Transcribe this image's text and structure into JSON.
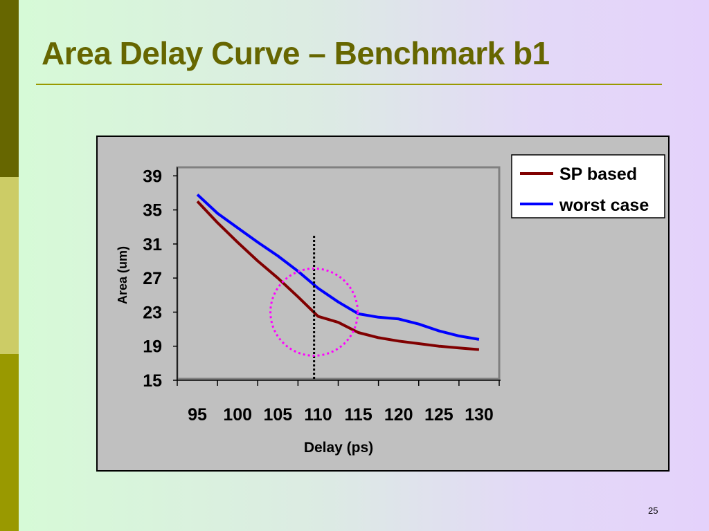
{
  "slide": {
    "title": "Area Delay Curve – Benchmark b1",
    "page_number": "25"
  },
  "colors": {
    "title": "#666600",
    "sidebar_dark": "#666600",
    "sidebar_light": "#cccc66",
    "sidebar_mid": "#999900",
    "chart_background": "#c0c0c0",
    "annotation_circle": "#ff00ff"
  },
  "chart_data": {
    "type": "line",
    "title": "",
    "xlabel": "Delay (ps)",
    "ylabel": "Area (um)",
    "x": [
      95,
      97.5,
      100,
      102.5,
      105,
      107.5,
      110,
      112.5,
      115,
      117.5,
      120,
      122.5,
      125,
      127.5,
      130
    ],
    "categories": [
      "95",
      "100",
      "105",
      "110",
      "115",
      "120",
      "125",
      "130"
    ],
    "yticks": [
      "39",
      "35",
      "31",
      "27",
      "23",
      "19",
      "15"
    ],
    "ylim": [
      15,
      40
    ],
    "grid": false,
    "legend": "top-right",
    "series": [
      {
        "name": "SP based",
        "color": "#800000",
        "values": [
          36.0,
          33.5,
          31.2,
          29.0,
          27.0,
          24.8,
          22.5,
          21.8,
          20.6,
          20.0,
          19.6,
          19.3,
          19.0,
          18.8,
          18.6
        ]
      },
      {
        "name": "worst case",
        "color": "#0000ff",
        "values": [
          36.8,
          34.6,
          32.9,
          31.2,
          29.6,
          27.8,
          25.8,
          24.2,
          22.8,
          22.4,
          22.2,
          21.6,
          20.8,
          20.2,
          19.8
        ]
      }
    ],
    "annotations": [
      {
        "type": "vertical-dotted-line",
        "x": 109.5
      },
      {
        "type": "dotted-circle",
        "cx": 109.5,
        "cy": 23
      }
    ]
  }
}
